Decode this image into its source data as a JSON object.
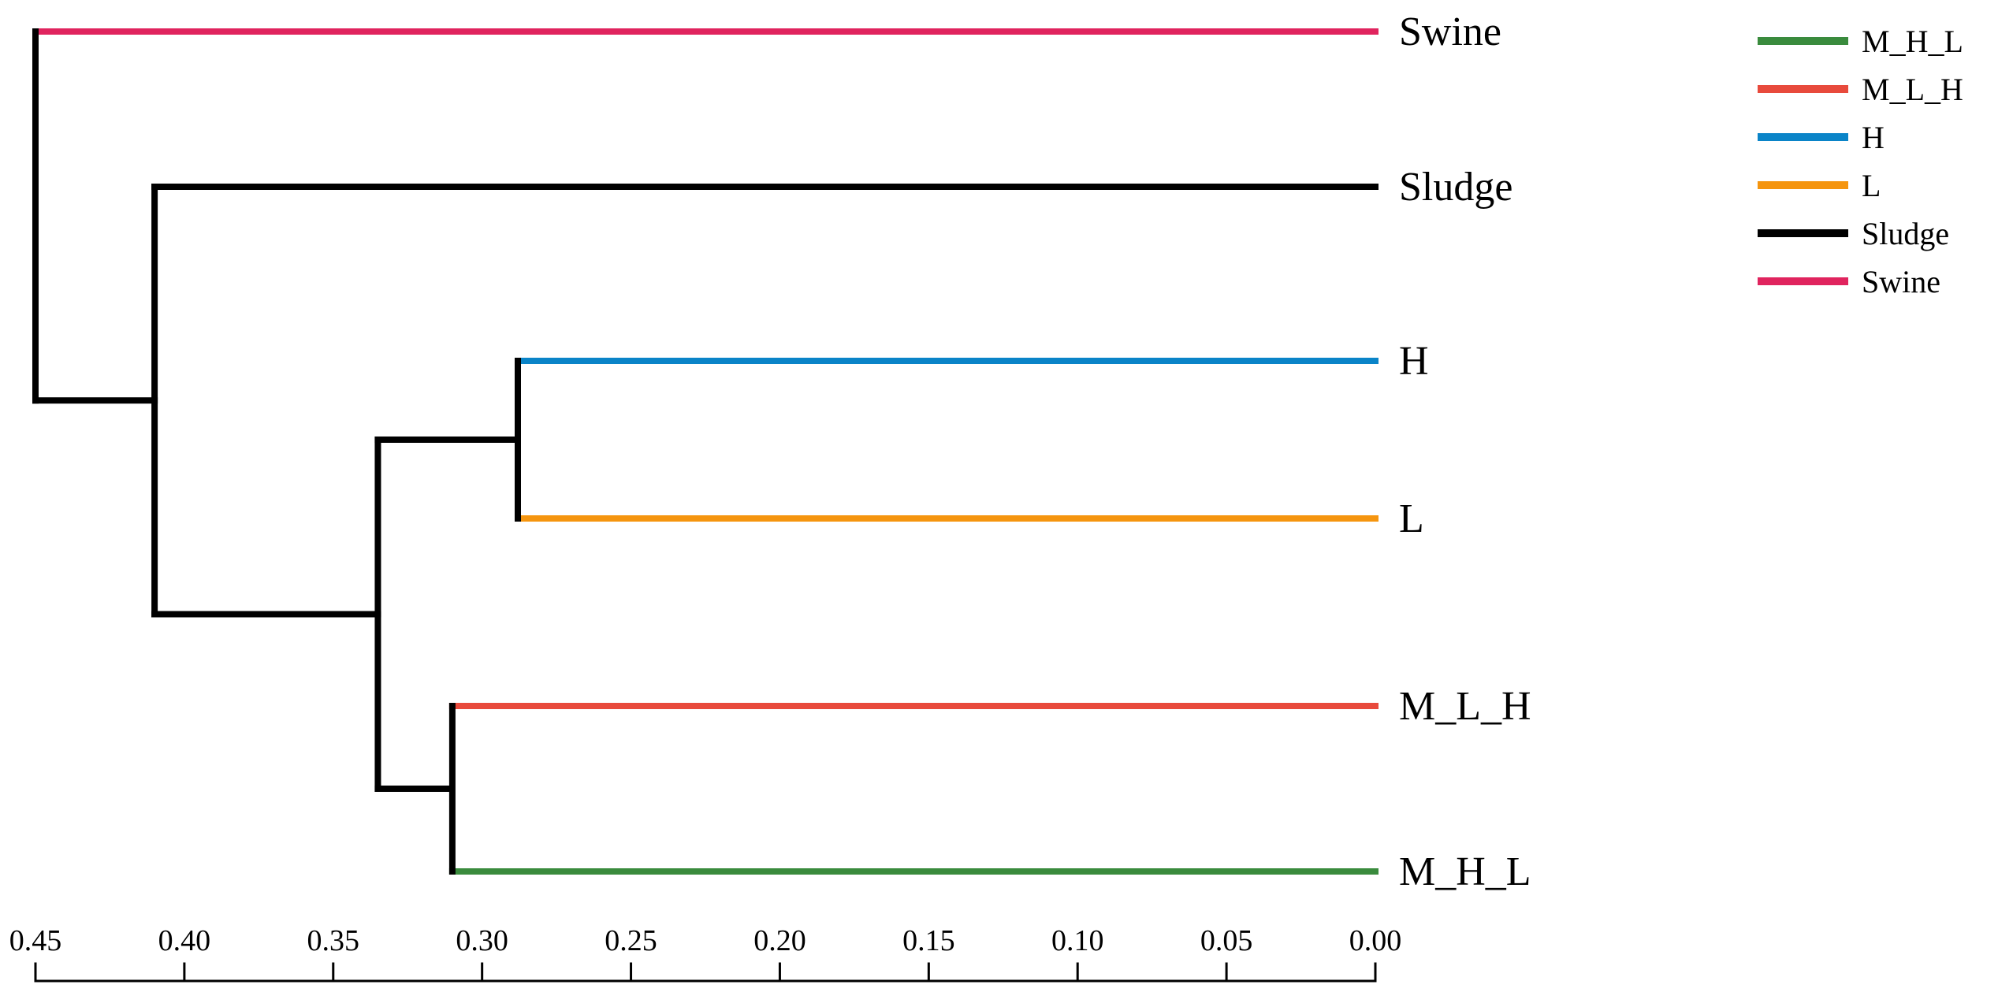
{
  "chart_data": {
    "type": "dendrogram",
    "orientation": "right-to-left",
    "xlim": [
      0.45,
      0.0
    ],
    "ticks": [
      "0.45",
      "0.40",
      "0.35",
      "0.30",
      "0.25",
      "0.20",
      "0.15",
      "0.10",
      "0.05",
      "0.00"
    ],
    "tick_values": [
      0.45,
      0.4,
      0.35,
      0.3,
      0.25,
      0.2,
      0.15,
      0.1,
      0.05,
      0.0
    ],
    "leaves": [
      {
        "label": "Swine",
        "color": "#e0245e"
      },
      {
        "label": "Sludge",
        "color": "#000000"
      },
      {
        "label": "H",
        "color": "#0a84c8"
      },
      {
        "label": "L",
        "color": "#f5950f"
      },
      {
        "label": "M_L_H",
        "color": "#e84a3c"
      },
      {
        "label": "M_H_L",
        "color": "#3a8b3d"
      }
    ],
    "merges": [
      {
        "children": [
          "H",
          "L"
        ],
        "height": 0.288
      },
      {
        "children": [
          "M_L_H",
          "M_H_L"
        ],
        "height": 0.31
      },
      {
        "children": [
          "H+L",
          "M_L_H+M_H_L"
        ],
        "height": 0.335
      },
      {
        "children": [
          "Sludge",
          "H+L+M"
        ],
        "height": 0.41
      },
      {
        "children": [
          "Swine",
          "rest"
        ],
        "height": 0.45
      }
    ],
    "legend": {
      "position": "top-right",
      "entries": [
        {
          "label": "M_H_L",
          "color": "#3a8b3d"
        },
        {
          "label": "M_L_H",
          "color": "#e84a3c"
        },
        {
          "label": "H",
          "color": "#0a84c8"
        },
        {
          "label": "L",
          "color": "#f5950f"
        },
        {
          "label": "Sludge",
          "color": "#000000"
        },
        {
          "label": "Swine",
          "color": "#e0245e"
        }
      ]
    }
  }
}
